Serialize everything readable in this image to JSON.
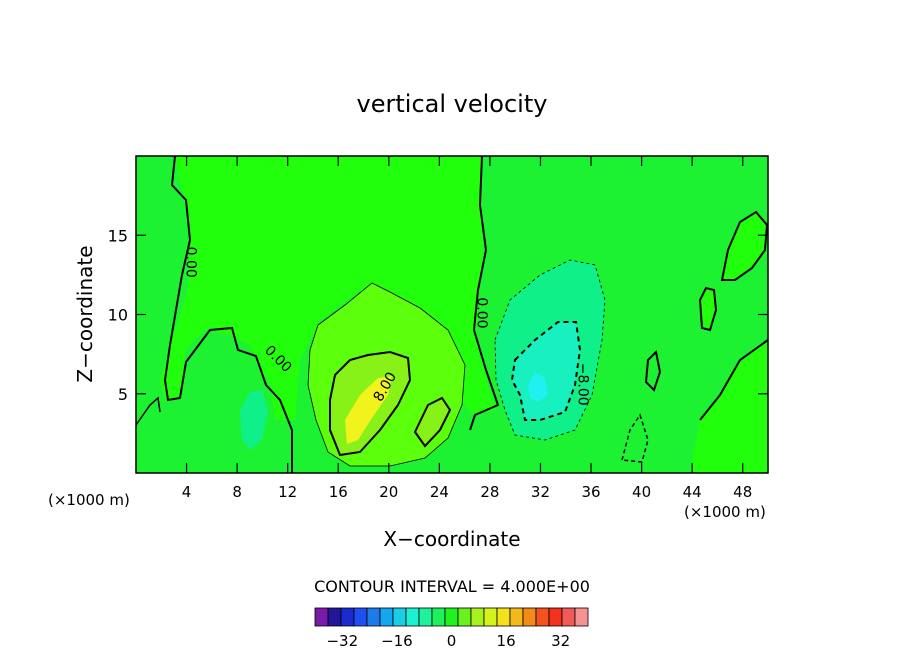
{
  "chart_data": {
    "type": "contour",
    "title": "vertical velocity",
    "xlabel": "X−coordinate",
    "ylabel": "Z−coordinate",
    "x_unit_left": "(×1000 m)",
    "x_unit_right": "(×1000 m)",
    "xlim": [
      0,
      50
    ],
    "ylim": [
      0,
      20
    ],
    "x_ticks": [
      4,
      8,
      12,
      16,
      20,
      24,
      28,
      32,
      36,
      40,
      44,
      48
    ],
    "y_ticks": [
      5,
      10,
      15
    ],
    "contour_interval_text": "CONTOUR INTERVAL = 4.000E+00",
    "contour_labels": [
      {
        "text": "0.00",
        "x": 4.0,
        "y": 13.3
      },
      {
        "text": "0.00",
        "x": 11.0,
        "y": 7.0
      },
      {
        "text": "0.00",
        "x": 27.0,
        "y": 10.1
      },
      {
        "text": "8.00",
        "x": 20.0,
        "y": 5.3
      },
      {
        "text": "−8.00",
        "x": 35.0,
        "y": 5.6
      }
    ],
    "colorbar": {
      "colors": [
        "#7b1aa8",
        "#23169b",
        "#1c2bd0",
        "#1f4ff0",
        "#1e7ae8",
        "#15a6ef",
        "#1ccde8",
        "#1ef0d4",
        "#1ff29a",
        "#1ef05e",
        "#22f21c",
        "#6af01c",
        "#a8f01e",
        "#d6f21c",
        "#f2e21c",
        "#f2b91c",
        "#f28a1c",
        "#f2521c",
        "#f2321e",
        "#f25a5a",
        "#f59292"
      ],
      "tick_labels": [
        "−32",
        "−16",
        "0",
        "16",
        "32"
      ],
      "tick_values": [
        -32,
        -16,
        0,
        16,
        32
      ],
      "range": [
        -40,
        40
      ]
    },
    "fill_colors": {
      "zero": "#22ff0c",
      "background": "#1df232",
      "weak_pos": "#5cff0c",
      "pos_4": "#86f218",
      "pos_8": "#c8f20c",
      "pos_12": "#f2f21c",
      "neg_4": "#10f088",
      "neg_8": "#18f0c0",
      "neg_12": "#20f0f0"
    }
  }
}
